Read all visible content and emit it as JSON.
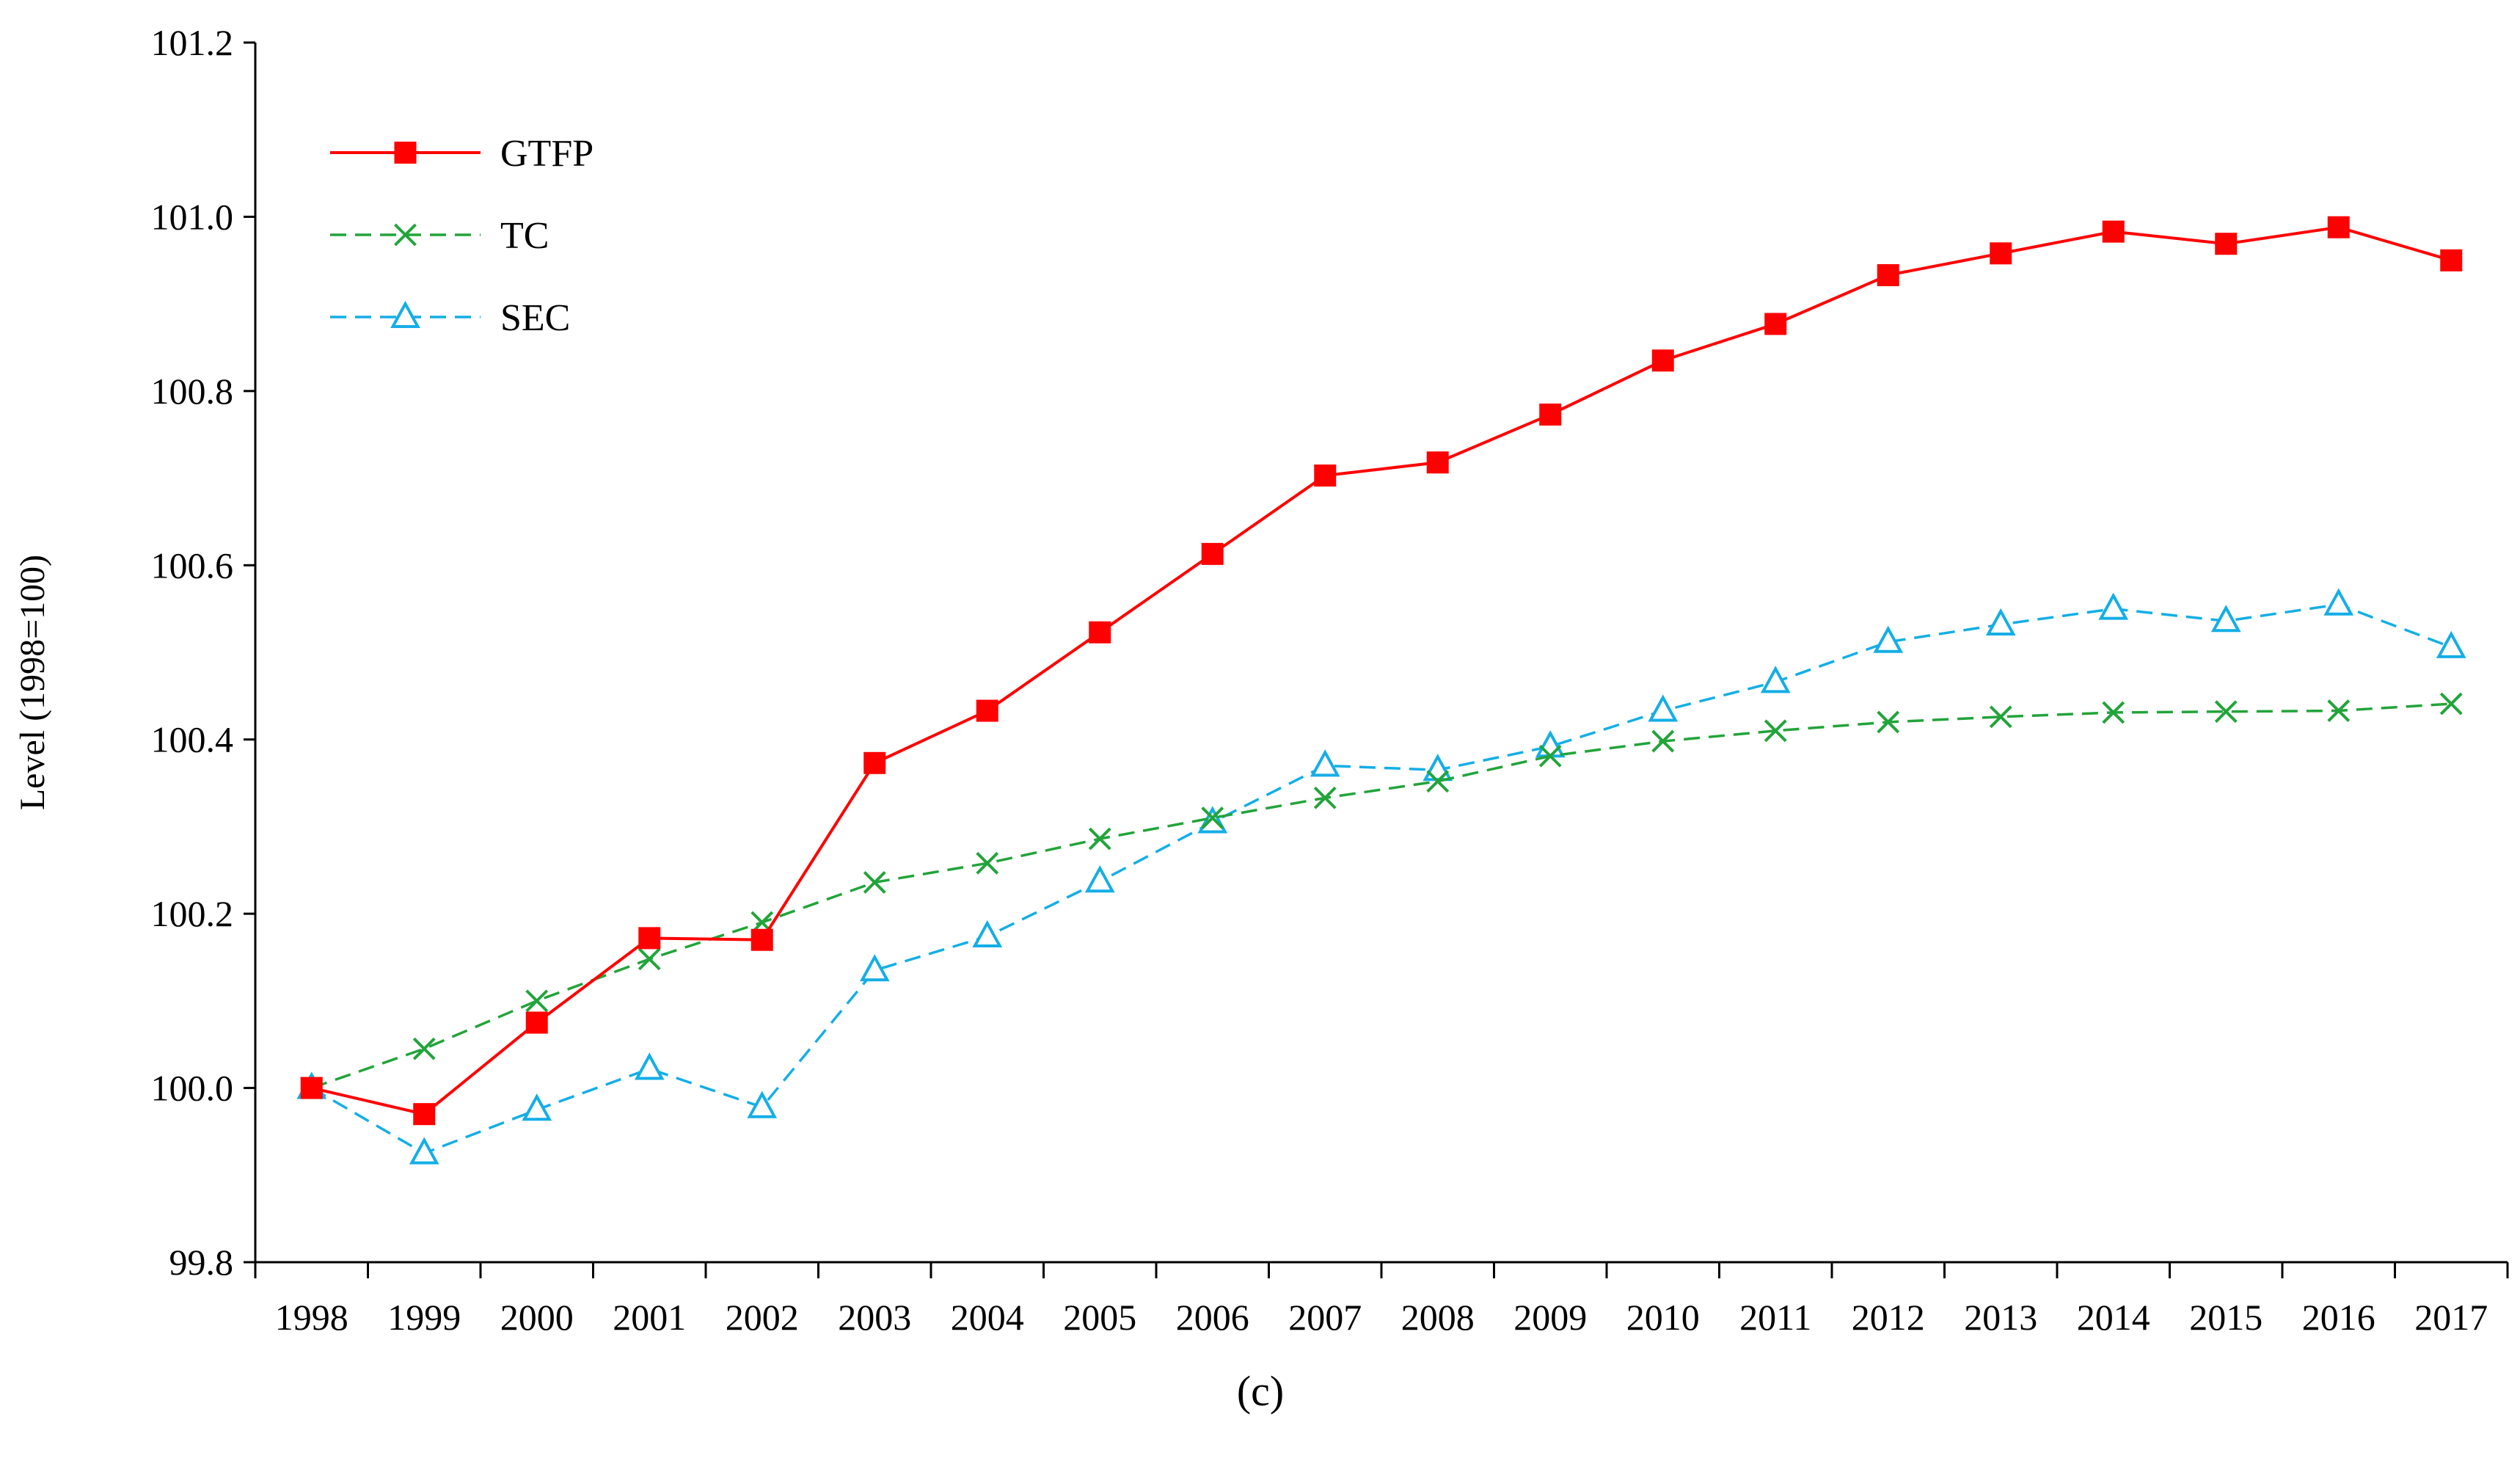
{
  "chart_data": {
    "type": "line",
    "title": "",
    "xlabel": "",
    "ylabel": "Level (1998=100)",
    "ylim": [
      99.8,
      101.2
    ],
    "yticks": [
      "99.8",
      "100.0",
      "100.2",
      "100.4",
      "100.6",
      "100.8",
      "101.0",
      "101.2"
    ],
    "ytick_values": [
      99.8,
      100.0,
      100.2,
      100.4,
      100.6,
      100.8,
      101.0,
      101.2
    ],
    "categories": [
      "1998",
      "1999",
      "2000",
      "2001",
      "2002",
      "2003",
      "2004",
      "2005",
      "2006",
      "2007",
      "2008",
      "2009",
      "2010",
      "2011",
      "2012",
      "2013",
      "2014",
      "2015",
      "2016",
      "2017"
    ],
    "legend_position": "top-left",
    "grid": false,
    "series": [
      {
        "name": "GTFP",
        "color": "#ff0000",
        "line_style": "solid",
        "marker": "square",
        "values": [
          100.0,
          99.97,
          100.075,
          100.172,
          100.17,
          100.373,
          100.433,
          100.523,
          100.613,
          100.703,
          100.718,
          100.773,
          100.835,
          100.877,
          100.933,
          100.958,
          100.983,
          100.969,
          100.988,
          100.95
        ]
      },
      {
        "name": "TC",
        "color": "#22a43a",
        "line_style": "dashed",
        "marker": "x",
        "values": [
          100.0,
          100.045,
          100.1,
          100.148,
          100.19,
          100.236,
          100.258,
          100.286,
          100.31,
          100.333,
          100.352,
          100.381,
          100.398,
          100.41,
          100.42,
          100.426,
          100.431,
          100.432,
          100.433,
          100.441
        ]
      },
      {
        "name": "SEC",
        "color": "#14aee6",
        "line_style": "dashed",
        "marker": "triangle",
        "values": [
          100.0,
          99.925,
          99.975,
          100.022,
          99.978,
          100.135,
          100.174,
          100.237,
          100.305,
          100.37,
          100.365,
          100.392,
          100.433,
          100.466,
          100.512,
          100.532,
          100.55,
          100.536,
          100.555,
          100.506
        ]
      }
    ],
    "caption": "(c)"
  }
}
